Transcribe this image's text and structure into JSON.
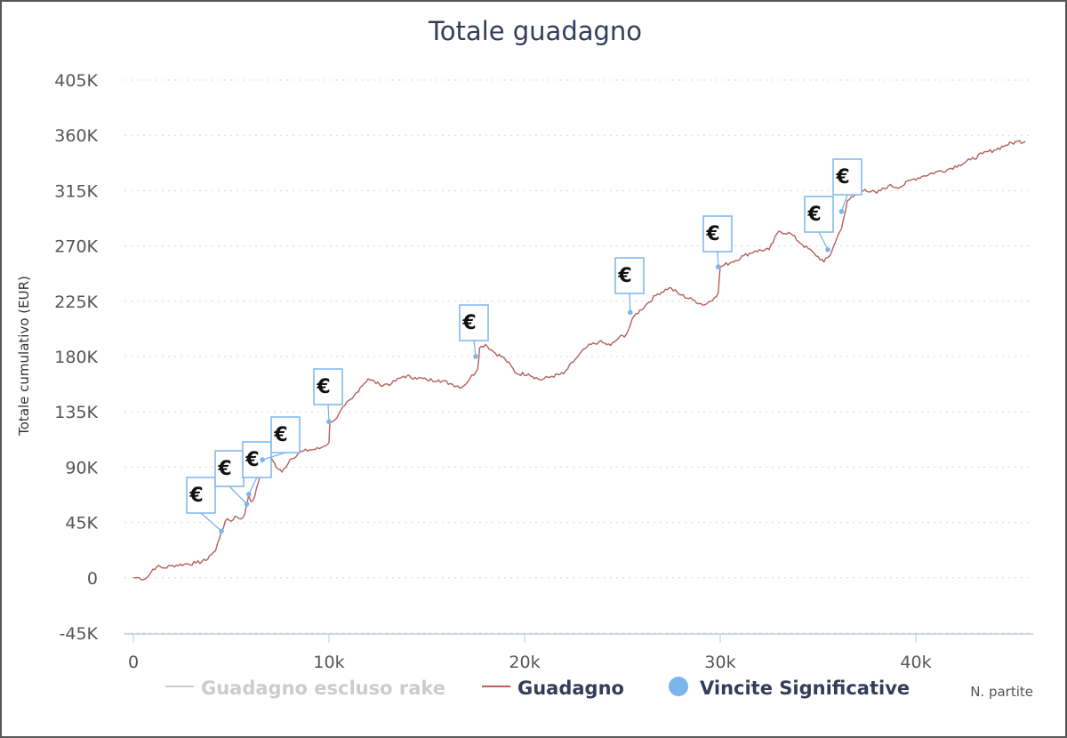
{
  "chart_data": {
    "type": "line",
    "title": "Totale guadagno",
    "xlabel": "N. partite",
    "ylabel": "Totale cumulativo (EUR)",
    "xlim": [
      0,
      46000
    ],
    "ylim": [
      -45000,
      405000
    ],
    "x_ticks": [
      0,
      10000,
      20000,
      30000,
      40000
    ],
    "x_tick_labels": [
      "0",
      "10k",
      "20k",
      "30k",
      "40k"
    ],
    "y_ticks": [
      -45000,
      0,
      45000,
      90000,
      135000,
      180000,
      225000,
      270000,
      315000,
      360000,
      405000
    ],
    "y_tick_labels": [
      "-45K",
      "0",
      "45K",
      "90K",
      "135K",
      "180K",
      "225K",
      "270K",
      "315K",
      "360K",
      "405K"
    ],
    "grid": "horizontal dotted",
    "legend_position": "bottom",
    "legend": [
      {
        "name": "Guadagno escluso rake",
        "color": "#cccccc",
        "marker": "line",
        "state": "hidden"
      },
      {
        "name": "Guadagno",
        "color": "#b5605c",
        "marker": "line",
        "state": "visible"
      },
      {
        "name": "Vincite Significative",
        "color": "#7cb5ec",
        "marker": "circle",
        "state": "visible"
      }
    ],
    "series": [
      {
        "name": "Guadagno",
        "color": "#b5605c",
        "points": [
          [
            0,
            0
          ],
          [
            300,
            0
          ],
          [
            600,
            -1000
          ],
          [
            800,
            2000
          ],
          [
            1000,
            7000
          ],
          [
            1200,
            9000
          ],
          [
            1600,
            8000
          ],
          [
            2000,
            10000
          ],
          [
            2600,
            11000
          ],
          [
            3200,
            12000
          ],
          [
            3700,
            14000
          ],
          [
            3900,
            18000
          ],
          [
            4200,
            22000
          ],
          [
            4500,
            38000
          ],
          [
            4800,
            48000
          ],
          [
            5000,
            46000
          ],
          [
            5200,
            50000
          ],
          [
            5500,
            48000
          ],
          [
            5700,
            52000
          ],
          [
            5800,
            60000
          ],
          [
            5900,
            68000
          ],
          [
            6000,
            62000
          ],
          [
            6200,
            66000
          ],
          [
            6400,
            78000
          ],
          [
            6600,
            96000
          ],
          [
            6800,
            92000
          ],
          [
            7000,
            100000
          ],
          [
            7300,
            90000
          ],
          [
            7600,
            86000
          ],
          [
            8000,
            96000
          ],
          [
            8500,
            102000
          ],
          [
            9000,
            104000
          ],
          [
            9500,
            105000
          ],
          [
            10000,
            110000
          ],
          [
            10050,
            127000
          ],
          [
            10400,
            130000
          ],
          [
            10800,
            140000
          ],
          [
            11200,
            146000
          ],
          [
            11600,
            155000
          ],
          [
            12000,
            162000
          ],
          [
            12600,
            157000
          ],
          [
            13200,
            158000
          ],
          [
            13800,
            164000
          ],
          [
            14400,
            163000
          ],
          [
            15000,
            161000
          ],
          [
            15600,
            161000
          ],
          [
            16200,
            158000
          ],
          [
            16800,
            155000
          ],
          [
            17200,
            162000
          ],
          [
            17600,
            170000
          ],
          [
            17700,
            187000
          ],
          [
            18000,
            190000
          ],
          [
            18400,
            184000
          ],
          [
            19000,
            178000
          ],
          [
            19600,
            166000
          ],
          [
            20200,
            166000
          ],
          [
            20800,
            161000
          ],
          [
            21400,
            164000
          ],
          [
            22000,
            166000
          ],
          [
            22600,
            178000
          ],
          [
            23200,
            188000
          ],
          [
            23800,
            192000
          ],
          [
            24400,
            189000
          ],
          [
            24800,
            195000
          ],
          [
            25200,
            198000
          ],
          [
            25600,
            213000
          ],
          [
            26200,
            222000
          ],
          [
            26800,
            231000
          ],
          [
            27400,
            236000
          ],
          [
            28000,
            230000
          ],
          [
            28600,
            226000
          ],
          [
            29200,
            222000
          ],
          [
            29700,
            228000
          ],
          [
            29900,
            232000
          ],
          [
            30000,
            253000
          ],
          [
            30600,
            257000
          ],
          [
            31200,
            262000
          ],
          [
            31800,
            266000
          ],
          [
            32500,
            267000
          ],
          [
            33000,
            282000
          ],
          [
            33600,
            280000
          ],
          [
            34200,
            271000
          ],
          [
            34800,
            264000
          ],
          [
            35300,
            257000
          ],
          [
            35600,
            262000
          ],
          [
            35800,
            270000
          ],
          [
            36000,
            278000
          ],
          [
            36200,
            284000
          ],
          [
            36500,
            307000
          ],
          [
            36800,
            310000
          ],
          [
            37400,
            316000
          ],
          [
            38000,
            313000
          ],
          [
            38600,
            319000
          ],
          [
            39200,
            318000
          ],
          [
            39800,
            324000
          ],
          [
            40400,
            327000
          ],
          [
            41000,
            330000
          ],
          [
            41600,
            332000
          ],
          [
            42200,
            336000
          ],
          [
            42800,
            340000
          ],
          [
            43400,
            345000
          ],
          [
            44000,
            348000
          ],
          [
            44600,
            352000
          ],
          [
            45200,
            355000
          ],
          [
            45600,
            355000
          ]
        ]
      },
      {
        "name": "Vincite Significative",
        "color": "#7cb5ec",
        "points": [
          [
            4500,
            38000
          ],
          [
            5800,
            60000
          ],
          [
            5900,
            68000
          ],
          [
            6600,
            96000
          ],
          [
            10000,
            127000
          ],
          [
            17500,
            180000
          ],
          [
            25400,
            216000
          ],
          [
            29900,
            253000
          ],
          [
            35500,
            267000
          ],
          [
            36200,
            298000
          ]
        ],
        "flag_label": "€"
      }
    ]
  }
}
